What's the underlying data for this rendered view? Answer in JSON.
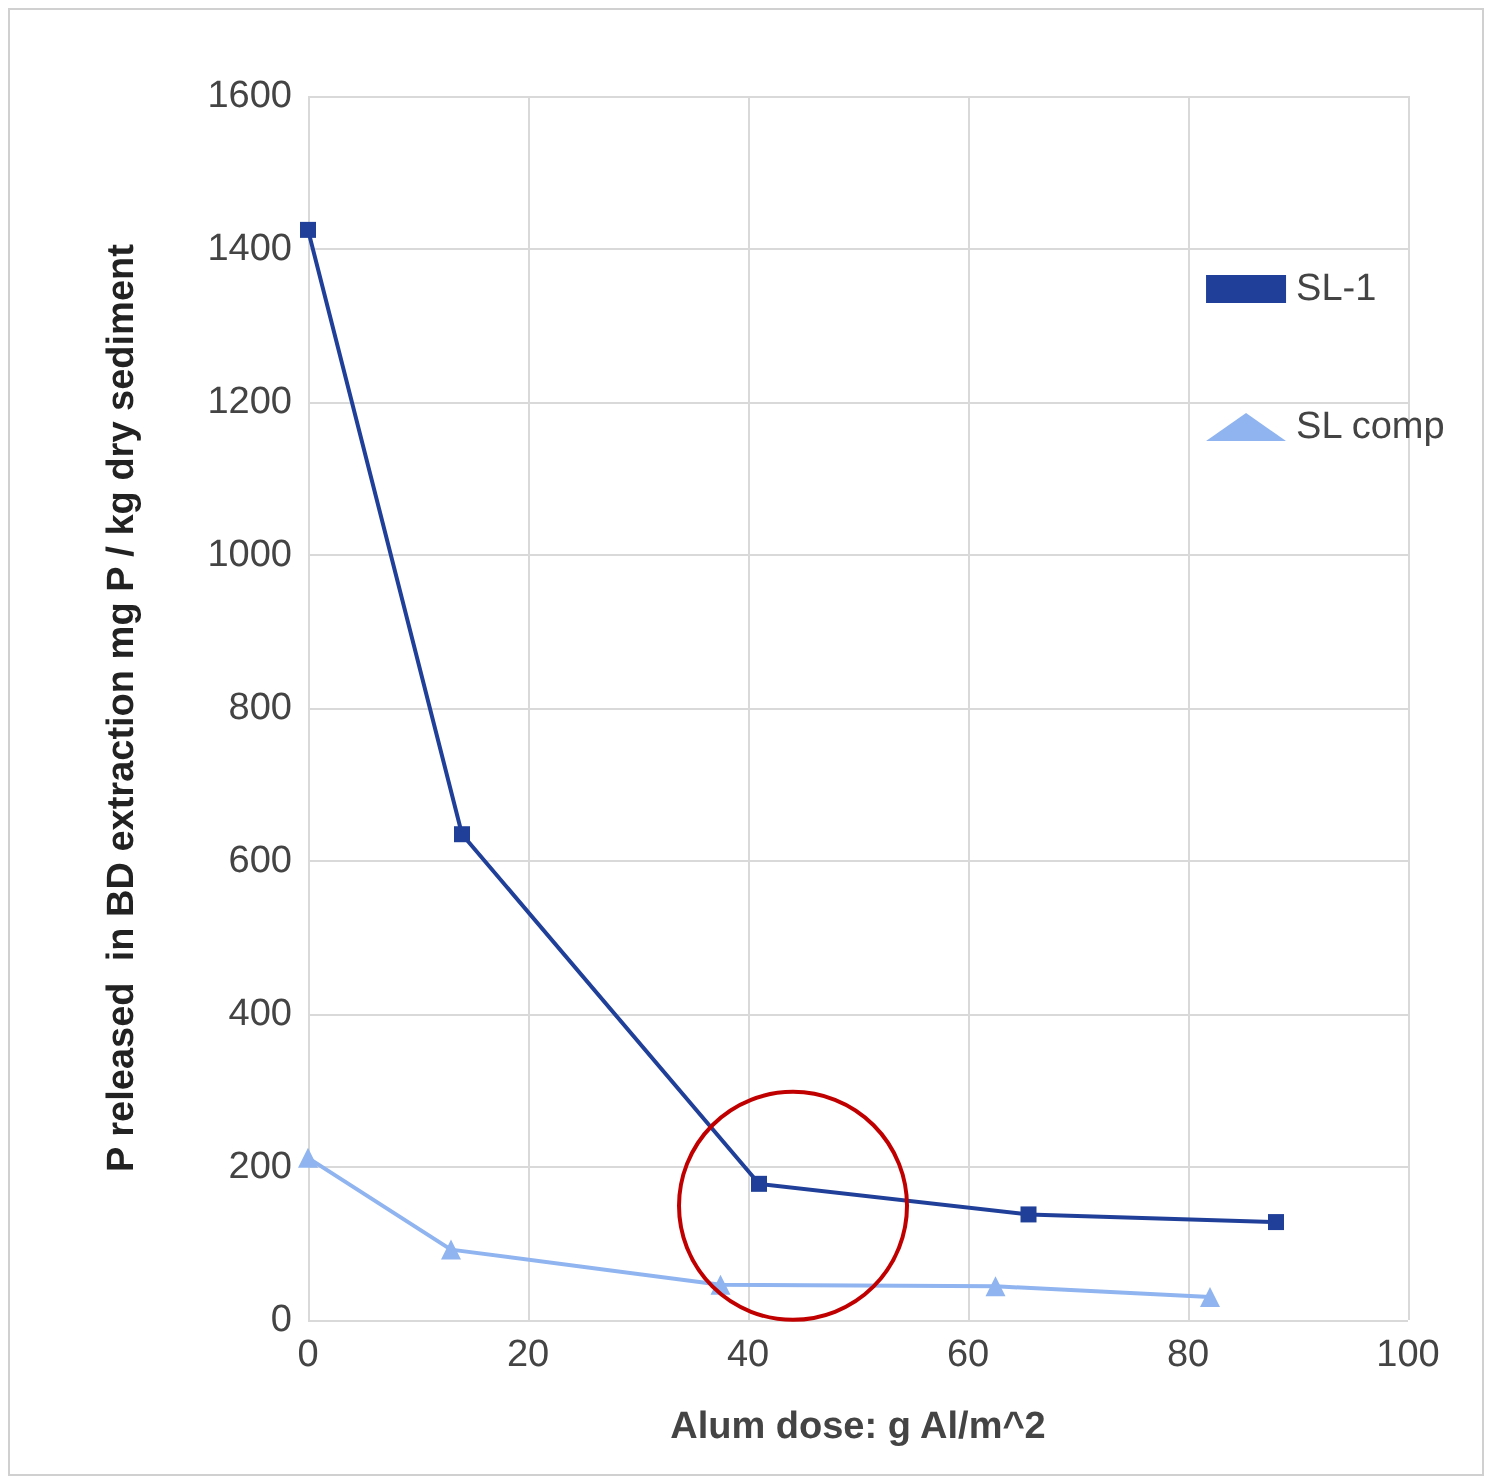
{
  "chart_data": {
    "type": "line",
    "xlabel": "Alum dose: g Al/m^2",
    "ylabel": "P released  in BD extraction mg P / kg dry sediment",
    "series": [
      {
        "name": "SL-1",
        "color": "#1f3f99",
        "marker": "square",
        "x": [
          0,
          14,
          41,
          65.5,
          88
        ],
        "values": [
          1425,
          635,
          178,
          138,
          128
        ]
      },
      {
        "name": "SL comp",
        "color": "#8fb4f0",
        "marker": "triangle",
        "x": [
          0,
          13,
          37.5,
          62.5,
          82
        ],
        "values": [
          212,
          92,
          46,
          44,
          30
        ]
      }
    ],
    "xlim": [
      0,
      100
    ],
    "xticks": [
      0,
      20,
      40,
      60,
      80,
      100
    ],
    "ylim": [
      0,
      1600
    ],
    "yticks": [
      0,
      200,
      400,
      600,
      800,
      1000,
      1200,
      1400,
      1600
    ],
    "grid": true,
    "legend": "top right",
    "line_style": "solid"
  }
}
